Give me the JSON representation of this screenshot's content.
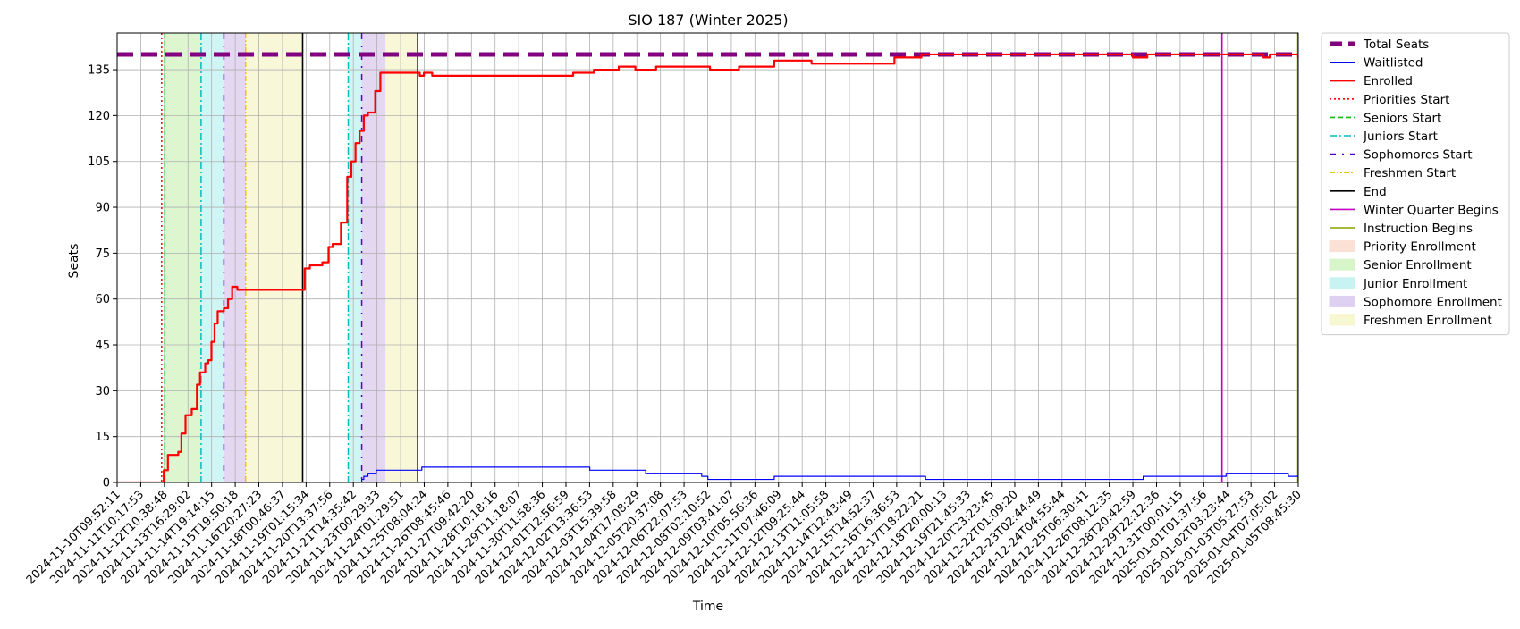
{
  "chart_data": {
    "type": "line",
    "title": "SIO 187 (Winter 2025)",
    "xlabel": "Time",
    "ylabel": "Seats",
    "ylim": [
      0,
      147
    ],
    "yticks": [
      0,
      15,
      30,
      45,
      60,
      75,
      90,
      105,
      120,
      135
    ],
    "xlim_days": [
      0,
      56.98
    ],
    "grid": true,
    "legend_position": "outside-right",
    "x_tick_labels": [
      "2024-11-10T09:52:11",
      "2024-11-11T10:17:53",
      "2024-11-12T10:38:48",
      "2024-11-13T16:29:02",
      "2024-11-14T19:14:15",
      "2024-11-15T19:50:18",
      "2024-11-16T20:27:23",
      "2024-11-18T00:46:37",
      "2024-11-19T01:15:34",
      "2024-11-20T13:37:56",
      "2024-11-21T14:35:42",
      "2024-11-23T00:29:33",
      "2024-11-24T01:29:51",
      "2024-11-25T08:04:24",
      "2024-11-26T08:45:46",
      "2024-11-27T09:42:20",
      "2024-11-28T10:18:16",
      "2024-11-29T11:18:07",
      "2024-11-30T11:58:36",
      "2024-12-01T12:56:59",
      "2024-12-02T13:36:53",
      "2024-12-03T15:39:58",
      "2024-12-04T17:08:29",
      "2024-12-05T20:37:08",
      "2024-12-06T22:07:53",
      "2024-12-08T02:10:52",
      "2024-12-09T03:41:07",
      "2024-12-10T05:56:36",
      "2024-12-11T07:46:09",
      "2024-12-12T09:25:44",
      "2024-12-13T11:05:58",
      "2024-12-14T12:43:49",
      "2024-12-15T14:52:37",
      "2024-12-16T16:36:53",
      "2024-12-17T18:22:21",
      "2024-12-18T20:00:13",
      "2024-12-19T21:45:33",
      "2024-12-20T23:23:45",
      "2024-12-22T01:09:20",
      "2024-12-23T02:44:49",
      "2024-12-24T04:55:44",
      "2024-12-25T06:30:41",
      "2024-12-26T08:12:35",
      "2024-12-28T20:42:59",
      "2024-12-29T22:12:36",
      "2024-12-31T00:01:15",
      "2025-01-01T01:37:56",
      "2025-01-02T03:23:44",
      "2025-01-03T05:27:53",
      "2025-01-04T07:05:02",
      "2025-01-05T08:45:30"
    ],
    "total_seats": 140,
    "series": [
      {
        "name": "Enrolled",
        "color": "#ff0000",
        "x": [
          0,
          2.15,
          2.25,
          2.45,
          2.95,
          3.1,
          3.3,
          3.5,
          3.6,
          3.85,
          4.0,
          4.25,
          4.4,
          4.55,
          4.7,
          4.85,
          5.15,
          5.35,
          5.55,
          5.8,
          6.05,
          6.25,
          6.45,
          6.6,
          6.75,
          7.0,
          7.5,
          8.5,
          9.05,
          9.15,
          9.3,
          9.9,
          10.2,
          10.4,
          10.8,
          11.1,
          11.3,
          11.5,
          11.7,
          11.9,
          12.1,
          12.45,
          12.7,
          12.95,
          13.2,
          13.4,
          14.6,
          14.8,
          15.2,
          16.5,
          18.0,
          20.3,
          22.0,
          22.6,
          23.0,
          23.5,
          24.2,
          25.0,
          26.0,
          28.6,
          30.0,
          31.7,
          33.5,
          36.7,
          37.5,
          38.8,
          41.0,
          43.0,
          45.0,
          49.0,
          49.7,
          50.2,
          55.0,
          55.3,
          55.6,
          56.98
        ],
        "values": [
          0,
          0,
          4,
          9,
          10,
          16,
          22,
          22,
          24,
          32,
          36,
          39,
          40,
          46,
          52,
          56,
          57,
          60,
          64,
          63,
          63,
          63,
          63,
          63,
          63,
          63,
          63,
          63,
          70,
          70,
          71,
          72,
          77,
          78,
          85,
          100,
          105,
          111,
          115,
          120,
          121,
          128,
          134,
          134,
          134,
          134,
          133,
          134,
          133,
          133,
          133,
          133,
          134,
          134,
          135,
          135,
          136,
          135,
          136,
          135,
          136,
          138,
          137,
          137,
          139,
          140,
          140,
          140,
          140,
          139,
          140,
          140,
          140,
          139,
          140,
          139
        ]
      },
      {
        "name": "Waitlisted",
        "color": "#0000ff",
        "x": [
          0,
          11.7,
          11.8,
          11.9,
          12.1,
          12.5,
          14.7,
          22.8,
          25.2,
          25.5,
          26.0,
          27.2,
          28.2,
          28.5,
          31.7,
          39.0,
          49.5,
          52.3,
          53.5,
          55.5,
          56.5,
          56.98
        ],
        "values": [
          0,
          0,
          1,
          2,
          3,
          4,
          5,
          4,
          4,
          3,
          3,
          3,
          2,
          1,
          2,
          1,
          2,
          2,
          3,
          3,
          2,
          2
        ]
      }
    ],
    "vertical_lines": [
      {
        "name": "Priorities Start",
        "x": 2.15,
        "color": "#ff0000",
        "style": "dotted"
      },
      {
        "name": "Seniors Start",
        "x": 2.3,
        "color": "#00c000",
        "style": "dashed"
      },
      {
        "name": "Juniors Start",
        "x": 4.05,
        "color": "#00bfbf",
        "style": "dashdot"
      },
      {
        "name": "Sophomores Start",
        "x": 5.15,
        "color": "#5500cc",
        "style": "loose-dashdot"
      },
      {
        "name": "Freshmen Start",
        "x": 6.2,
        "color": "#e6c800",
        "style": "dashdotdot"
      },
      {
        "name": "End",
        "x": 8.95,
        "color": "#000000",
        "style": "solid"
      },
      {
        "name": "Juniors Start",
        "x": 11.15,
        "color": "#00bfbf",
        "style": "dashdot"
      },
      {
        "name": "Sophomores Start",
        "x": 11.8,
        "color": "#5500cc",
        "style": "loose-dashdot"
      },
      {
        "name": "End",
        "x": 14.5,
        "color": "#000000",
        "style": "solid"
      },
      {
        "name": "Winter Quarter Begins",
        "x": 53.3,
        "color": "#c000c0",
        "style": "solid"
      },
      {
        "name": "Instruction Begins",
        "x": 56.96,
        "color": "#8aa000",
        "style": "solid"
      }
    ],
    "shaded_regions": [
      {
        "name": "Senior Enrollment",
        "x0": 2.3,
        "x1": 4.05,
        "color": "#d7f5c8"
      },
      {
        "name": "Junior Enrollment",
        "x0": 4.05,
        "x1": 5.15,
        "color": "#c8f3f3"
      },
      {
        "name": "Sophomore Enrollment",
        "x0": 5.15,
        "x1": 6.2,
        "color": "#ded0f0"
      },
      {
        "name": "Freshmen Enrollment",
        "x0": 6.2,
        "x1": 8.95,
        "color": "#f7f7d2"
      },
      {
        "name": "Junior Enrollment",
        "x0": 11.15,
        "x1": 11.8,
        "color": "#c8f3f3"
      },
      {
        "name": "Sophomore Enrollment",
        "x0": 11.8,
        "x1": 12.95,
        "color": "#ded0f0"
      },
      {
        "name": "Freshmen Enrollment",
        "x0": 12.95,
        "x1": 14.5,
        "color": "#f7f7d2"
      }
    ],
    "legend": [
      {
        "label": "Total Seats",
        "kind": "line",
        "color": "#800080",
        "style": "thick-dashed"
      },
      {
        "label": "Waitlisted",
        "kind": "line",
        "color": "#0000ff",
        "style": "solid"
      },
      {
        "label": "Enrolled",
        "kind": "line",
        "color": "#ff0000",
        "style": "solid-thick"
      },
      {
        "label": "Priorities Start",
        "kind": "line",
        "color": "#ff0000",
        "style": "dotted"
      },
      {
        "label": "Seniors Start",
        "kind": "line",
        "color": "#00c000",
        "style": "dashed"
      },
      {
        "label": "Juniors Start",
        "kind": "line",
        "color": "#00bfbf",
        "style": "dashdot"
      },
      {
        "label": "Sophomores Start",
        "kind": "line",
        "color": "#5500cc",
        "style": "loose-dashdot"
      },
      {
        "label": "Freshmen Start",
        "kind": "line",
        "color": "#e6c800",
        "style": "dashdotdot"
      },
      {
        "label": "End",
        "kind": "line",
        "color": "#000000",
        "style": "solid"
      },
      {
        "label": "Winter Quarter Begins",
        "kind": "line",
        "color": "#c000c0",
        "style": "solid"
      },
      {
        "label": "Instruction Begins",
        "kind": "line",
        "color": "#8aa000",
        "style": "solid"
      },
      {
        "label": "Priority Enrollment",
        "kind": "patch",
        "color": "#fbe0d6"
      },
      {
        "label": "Senior Enrollment",
        "kind": "patch",
        "color": "#d7f5c8"
      },
      {
        "label": "Junior Enrollment",
        "kind": "patch",
        "color": "#c8f3f3"
      },
      {
        "label": "Sophomore Enrollment",
        "kind": "patch",
        "color": "#ded0f0"
      },
      {
        "label": "Freshmen Enrollment",
        "kind": "patch",
        "color": "#f7f7d2"
      }
    ]
  }
}
